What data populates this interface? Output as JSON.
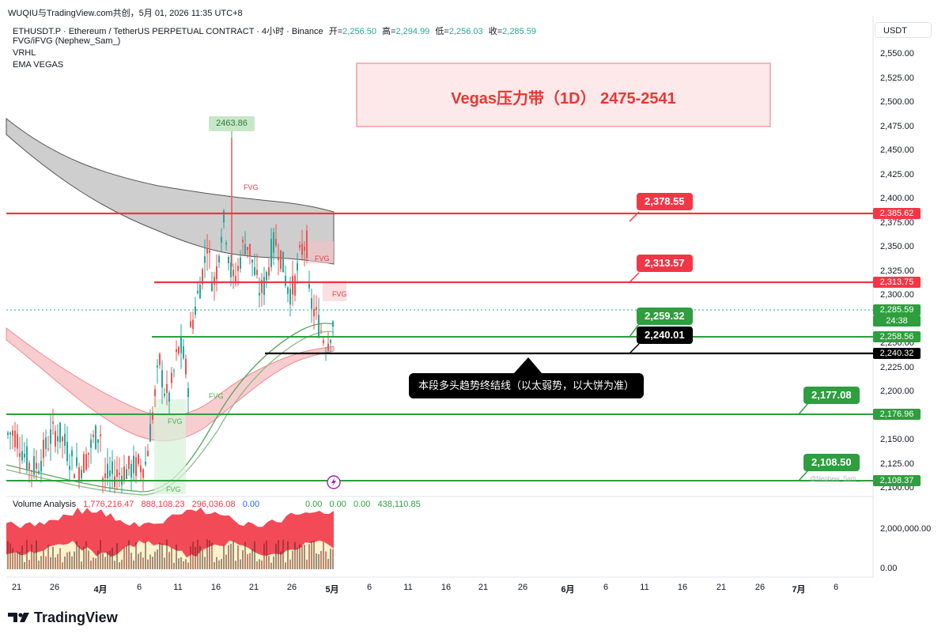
{
  "header": {
    "top_line": "WUQIU与TradingView.com共创，5月 01, 2026 11:35 UTC+8",
    "symbol_line": "ETHUSDT.P · Ethereum / TetherUS PERPETUAL CONTRACT · 4小时 · Binance",
    "open_label": "开=",
    "open_value": "2,256.50",
    "high_label": "高=",
    "high_value": "2,294.99",
    "low_label": "低=",
    "low_value": "2,256.03",
    "close_label": "收=",
    "close_value": "2,285.59",
    "indicators": [
      "FVG/iFVG (Nephew_Sam_)",
      "VRHL",
      "EMA VEGAS"
    ],
    "currency": "USDT"
  },
  "annotations": {
    "vegas_box": "Vegas压力带（1D） 2475-2541",
    "trend_note": "本段多头趋势终结线（以太弱势，以大饼为准）",
    "peak_label": "2463.86",
    "fvg_labels": [
      "FVG",
      "FVG",
      "FVG",
      "FVG",
      "FVG",
      "FVG"
    ],
    "watermark": "@Nephew_Sam_"
  },
  "callouts": [
    {
      "text": "2,378.55",
      "color": "#f23645"
    },
    {
      "text": "2,313.57",
      "color": "#f23645"
    },
    {
      "text": "2,259.32",
      "color": "#2e9e3e"
    },
    {
      "text": "2,240.01",
      "color": "#000000"
    },
    {
      "text": "2,177.08",
      "color": "#2e9e3e"
    },
    {
      "text": "2,108.50",
      "color": "#2e9e3e"
    }
  ],
  "price_tags": [
    {
      "text": "2,385.62",
      "color": "#f23645"
    },
    {
      "text": "2,313.75",
      "color": "#f23645"
    },
    {
      "text": "2,285.59",
      "color": "#2e9e3e"
    },
    {
      "text": "24:38",
      "color": "#2e9e3e"
    },
    {
      "text": "2,258.56",
      "color": "#2e9e3e"
    },
    {
      "text": "2,240.32",
      "color": "#000000"
    },
    {
      "text": "2,176.96",
      "color": "#2e9e3e"
    },
    {
      "text": "2,108.37",
      "color": "#2e9e3e"
    }
  ],
  "volume": {
    "title": "Volume Analysis",
    "values_red": [
      "1,776,216.47",
      "888,108.23",
      "296,036.08"
    ],
    "value_blue": "0.00",
    "values_green": [
      "0.00",
      "0.00",
      "0.00",
      "438,110.85"
    ],
    "axis": [
      "2,000,000.00",
      "0.00"
    ]
  },
  "brand": "TradingView",
  "chart_data": {
    "type": "candlestick",
    "title": "ETHUSDT.P · Ethereum / TetherUS PERPETUAL CONTRACT · 4小时 · Binance",
    "y_axis": {
      "ticks": [
        "2,550.00",
        "2,525.00",
        "2,500.00",
        "2,475.00",
        "2,450.00",
        "2,425.00",
        "2,400.00",
        "2,375.00",
        "2,350.00",
        "2,325.00",
        "2,300.00",
        "2,275.00",
        "2,250.00",
        "2,225.00",
        "2,200.00",
        "2,175.00",
        "2,150.00",
        "2,125.00",
        "2,100.00"
      ],
      "range": [
        2095,
        2565
      ]
    },
    "x_axis": {
      "ticks": [
        "21",
        "26",
        "4月",
        "6",
        "11",
        "16",
        "21",
        "26",
        "5月",
        "6",
        "11",
        "16",
        "21",
        "26",
        "6月",
        "6",
        "11",
        "16",
        "21",
        "26",
        "7月",
        "6"
      ]
    },
    "horizontal_levels": [
      {
        "price": 2385.62,
        "color": "#f23645"
      },
      {
        "price": 2313.75,
        "color": "#f23645"
      },
      {
        "price": 2258.56,
        "color": "#2e9e3e"
      },
      {
        "price": 2240.32,
        "color": "#000000"
      },
      {
        "price": 2176.96,
        "color": "#2e9e3e"
      },
      {
        "price": 2108.37,
        "color": "#2e9e3e"
      }
    ],
    "current_price": 2285.59,
    "peak": 2463.86,
    "ohlc_last": {
      "open": 2256.5,
      "high": 2294.99,
      "low": 2256.03,
      "close": 2285.59
    }
  }
}
